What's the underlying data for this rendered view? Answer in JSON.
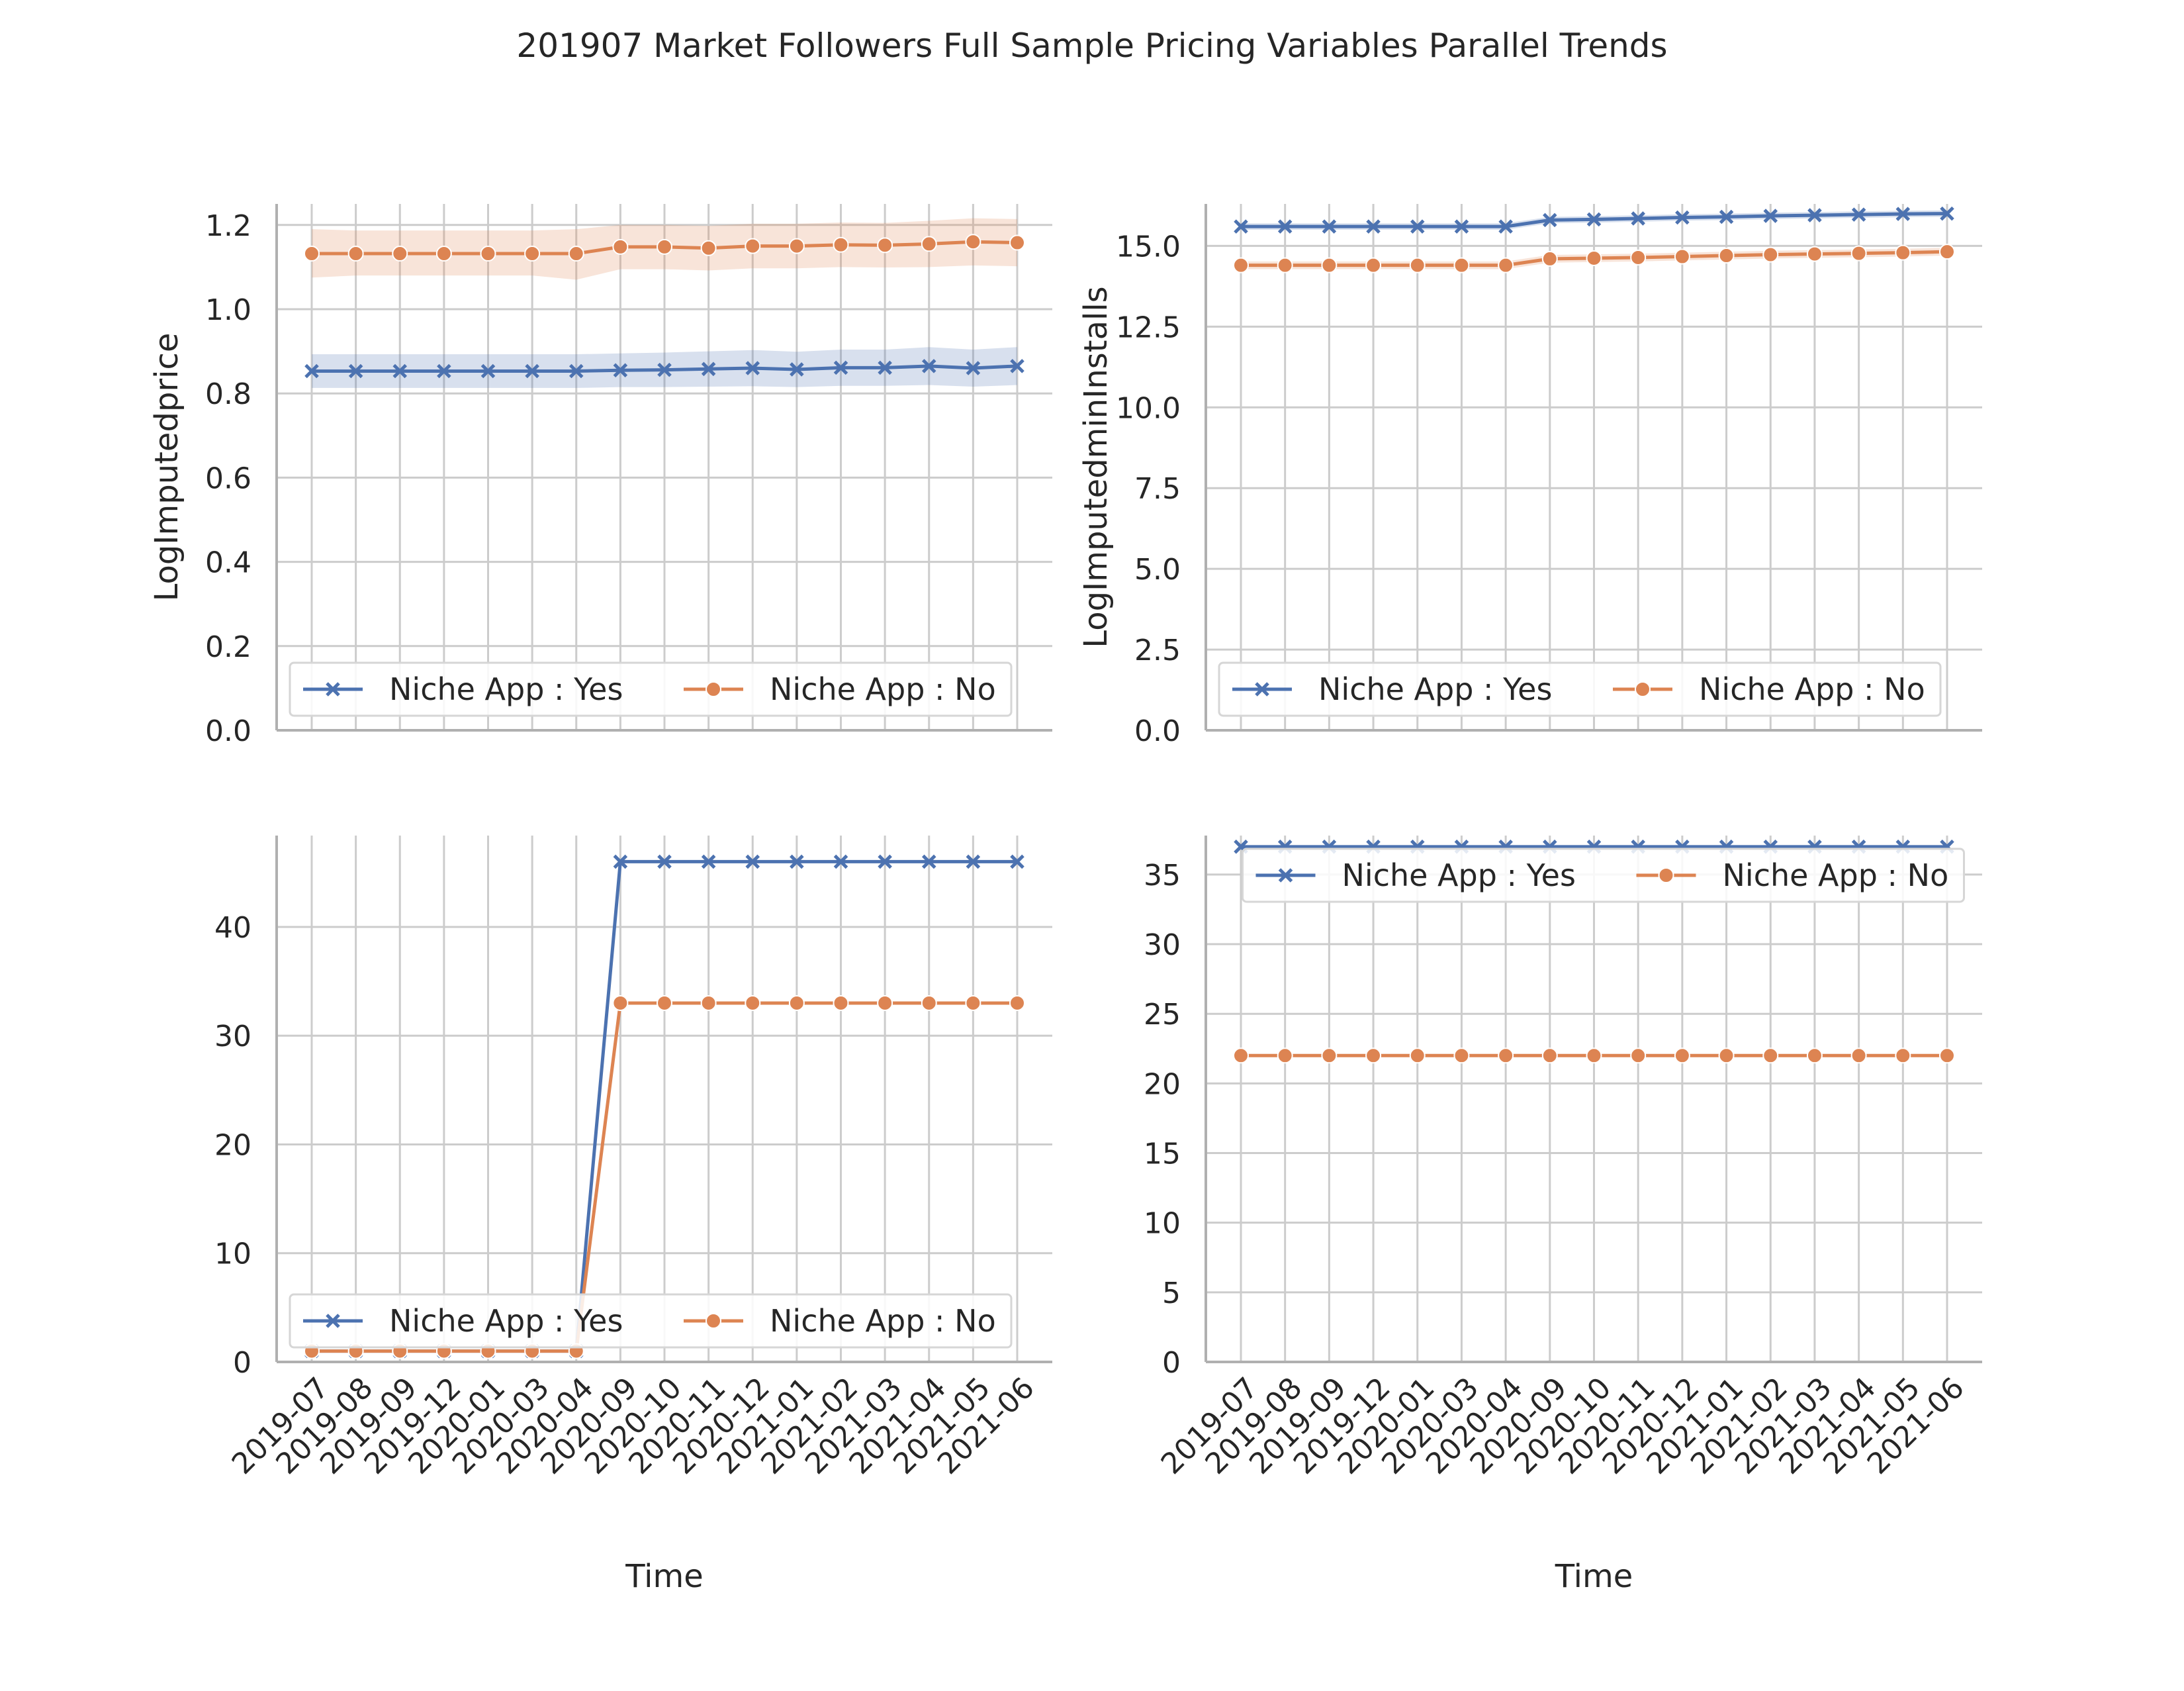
{
  "figure": {
    "title": "201907 Market Followers Full Sample Pricing Variables Parallel Trends"
  },
  "colors": {
    "yes": "#4c72b0",
    "no": "#dd8452",
    "grid": "#cccccc",
    "spine": "#b0b0b0",
    "text": "#262626"
  },
  "chart_data": [
    {
      "type": "line",
      "title": "",
      "xlabel": "",
      "ylabel": "LogImputedprice",
      "categories": [
        "2019-07",
        "2019-08",
        "2019-09",
        "2019-12",
        "2020-01",
        "2020-03",
        "2020-04",
        "2020-09",
        "2020-10",
        "2020-11",
        "2020-12",
        "2021-01",
        "2021-02",
        "2021-03",
        "2021-04",
        "2021-05",
        "2021-06"
      ],
      "ylim": [
        0,
        1.25
      ],
      "yticks": [
        0,
        0.2,
        0.4,
        0.6,
        0.8,
        1.0,
        1.2
      ],
      "ytick_labels": [
        "0.0",
        "0.2",
        "0.4",
        "0.6",
        "0.8",
        "1.0",
        "1.2"
      ],
      "show_xtick_labels": false,
      "grid": true,
      "legend": {
        "placement": "lower-left",
        "columns": 2
      },
      "series": [
        {
          "name": "Niche App : Yes",
          "marker": "x",
          "color": "#4c72b0",
          "values": [
            0.853,
            0.853,
            0.853,
            0.853,
            0.853,
            0.853,
            0.853,
            0.855,
            0.856,
            0.858,
            0.86,
            0.857,
            0.861,
            0.861,
            0.865,
            0.86,
            0.865
          ],
          "ci_low": [
            0.813,
            0.813,
            0.813,
            0.813,
            0.813,
            0.813,
            0.813,
            0.815,
            0.815,
            0.816,
            0.817,
            0.815,
            0.818,
            0.818,
            0.82,
            0.816,
            0.82
          ],
          "ci_high": [
            0.893,
            0.893,
            0.893,
            0.893,
            0.893,
            0.893,
            0.893,
            0.895,
            0.897,
            0.9,
            0.903,
            0.899,
            0.904,
            0.904,
            0.91,
            0.904,
            0.91
          ]
        },
        {
          "name": "Niche App : No",
          "marker": "o",
          "color": "#dd8452",
          "values": [
            1.132,
            1.132,
            1.132,
            1.132,
            1.132,
            1.132,
            1.132,
            1.148,
            1.148,
            1.145,
            1.15,
            1.15,
            1.153,
            1.152,
            1.155,
            1.16,
            1.158
          ],
          "ci_low": [
            1.075,
            1.08,
            1.08,
            1.08,
            1.08,
            1.08,
            1.07,
            1.095,
            1.095,
            1.092,
            1.097,
            1.097,
            1.1,
            1.099,
            1.1,
            1.104,
            1.102
          ],
          "ci_high": [
            1.19,
            1.187,
            1.187,
            1.187,
            1.187,
            1.187,
            1.19,
            1.2,
            1.2,
            1.198,
            1.203,
            1.203,
            1.206,
            1.205,
            1.21,
            1.216,
            1.214
          ]
        }
      ]
    },
    {
      "type": "line",
      "title": "",
      "xlabel": "",
      "ylabel": "LogImputedminInstalls",
      "categories": [
        "2019-07",
        "2019-08",
        "2019-09",
        "2019-12",
        "2020-01",
        "2020-03",
        "2020-04",
        "2020-09",
        "2020-10",
        "2020-11",
        "2020-12",
        "2021-01",
        "2021-02",
        "2021-03",
        "2021-04",
        "2021-05",
        "2021-06"
      ],
      "ylim": [
        0,
        16.3
      ],
      "yticks": [
        0,
        2.5,
        5,
        7.5,
        10,
        12.5,
        15
      ],
      "ytick_labels": [
        "0.0",
        "2.5",
        "5.0",
        "7.5",
        "10.0",
        "12.5",
        "15.0"
      ],
      "show_xtick_labels": false,
      "grid": true,
      "legend": {
        "placement": "lower-left",
        "columns": 2
      },
      "series": [
        {
          "name": "Niche App : Yes",
          "marker": "x",
          "color": "#4c72b0",
          "values": [
            15.6,
            15.6,
            15.6,
            15.6,
            15.6,
            15.6,
            15.6,
            15.8,
            15.82,
            15.85,
            15.88,
            15.9,
            15.93,
            15.95,
            15.97,
            15.99,
            16.0
          ],
          "ci_low": [
            15.5,
            15.5,
            15.5,
            15.5,
            15.5,
            15.5,
            15.5,
            15.7,
            15.72,
            15.75,
            15.78,
            15.8,
            15.83,
            15.85,
            15.87,
            15.89,
            15.9
          ],
          "ci_high": [
            15.7,
            15.7,
            15.7,
            15.7,
            15.7,
            15.7,
            15.7,
            15.9,
            15.92,
            15.95,
            15.98,
            16.0,
            16.03,
            16.05,
            16.07,
            16.09,
            16.1
          ]
        },
        {
          "name": "Niche App : No",
          "marker": "o",
          "color": "#dd8452",
          "values": [
            14.4,
            14.4,
            14.4,
            14.4,
            14.4,
            14.4,
            14.4,
            14.6,
            14.62,
            14.64,
            14.67,
            14.7,
            14.73,
            14.75,
            14.77,
            14.79,
            14.82
          ],
          "ci_low": [
            14.28,
            14.28,
            14.28,
            14.28,
            14.28,
            14.28,
            14.28,
            14.48,
            14.5,
            14.52,
            14.55,
            14.58,
            14.61,
            14.63,
            14.65,
            14.67,
            14.7
          ],
          "ci_high": [
            14.52,
            14.52,
            14.52,
            14.52,
            14.52,
            14.52,
            14.52,
            14.72,
            14.74,
            14.76,
            14.79,
            14.82,
            14.85,
            14.87,
            14.89,
            14.91,
            14.94
          ]
        }
      ]
    },
    {
      "type": "line",
      "title": "",
      "xlabel": "Time",
      "ylabel": "",
      "categories": [
        "2019-07",
        "2019-08",
        "2019-09",
        "2019-12",
        "2020-01",
        "2020-03",
        "2020-04",
        "2020-09",
        "2020-10",
        "2020-11",
        "2020-12",
        "2021-01",
        "2021-02",
        "2021-03",
        "2021-04",
        "2021-05",
        "2021-06"
      ],
      "ylim": [
        0,
        48.4
      ],
      "yticks": [
        0,
        10,
        20,
        30,
        40
      ],
      "ytick_labels": [
        "0",
        "10",
        "20",
        "30",
        "40"
      ],
      "show_xtick_labels": true,
      "grid": true,
      "legend": {
        "placement": "lower-left",
        "columns": 2
      },
      "series": [
        {
          "name": "Niche App : Yes",
          "marker": "x",
          "color": "#4c72b0",
          "values": [
            1,
            1,
            1,
            1,
            1,
            1,
            1,
            46,
            46,
            46,
            46,
            46,
            46,
            46,
            46,
            46,
            46
          ]
        },
        {
          "name": "Niche App : No",
          "marker": "o",
          "color": "#dd8452",
          "values": [
            1,
            1,
            1,
            1,
            1,
            1,
            1,
            33,
            33,
            33,
            33,
            33,
            33,
            33,
            33,
            33,
            33
          ]
        }
      ]
    },
    {
      "type": "line",
      "title": "",
      "xlabel": "Time",
      "ylabel": "",
      "categories": [
        "2019-07",
        "2019-08",
        "2019-09",
        "2019-12",
        "2020-01",
        "2020-03",
        "2020-04",
        "2020-09",
        "2020-10",
        "2020-11",
        "2020-12",
        "2021-01",
        "2021-02",
        "2021-03",
        "2021-04",
        "2021-05",
        "2021-06"
      ],
      "ylim": [
        0,
        37.8
      ],
      "yticks": [
        0,
        5,
        10,
        15,
        20,
        25,
        30,
        35
      ],
      "ytick_labels": [
        "0",
        "5",
        "10",
        "15",
        "20",
        "25",
        "30",
        "35"
      ],
      "show_xtick_labels": true,
      "grid": true,
      "legend": {
        "placement": "upper-center",
        "columns": 2
      },
      "series": [
        {
          "name": "Niche App : Yes",
          "marker": "x",
          "color": "#4c72b0",
          "values": [
            37,
            37,
            37,
            37,
            37,
            37,
            37,
            37,
            37,
            37,
            37,
            37,
            37,
            37,
            37,
            37,
            37
          ]
        },
        {
          "name": "Niche App : No",
          "marker": "o",
          "color": "#dd8452",
          "values": [
            22,
            22,
            22,
            22,
            22,
            22,
            22,
            22,
            22,
            22,
            22,
            22,
            22,
            22,
            22,
            22,
            22
          ]
        }
      ]
    }
  ]
}
